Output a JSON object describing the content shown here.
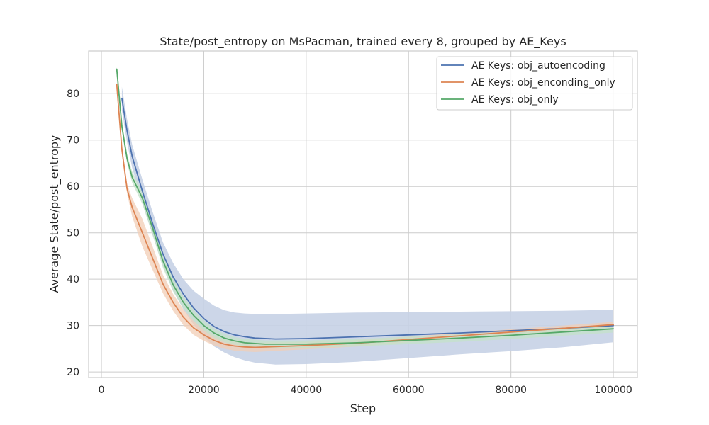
{
  "chart_data": {
    "type": "line",
    "title": "State/post_entropy on MsPacman, trained every 8, grouped by AE_Keys",
    "xlabel": "Step",
    "ylabel": "Average State/post_entropy",
    "xlim": [
      -2500,
      104700
    ],
    "ylim": [
      18.8,
      89.2
    ],
    "xticks": [
      0,
      20000,
      40000,
      60000,
      80000,
      100000
    ],
    "xtick_labels": [
      "0",
      "20000",
      "40000",
      "60000",
      "80000",
      "100000"
    ],
    "yticks": [
      20,
      30,
      40,
      50,
      60,
      70,
      80
    ],
    "ytick_labels": [
      "20",
      "30",
      "40",
      "50",
      "60",
      "70",
      "80"
    ],
    "grid": true,
    "legend_position": "top-right",
    "series": [
      {
        "name": "AE Keys: obj_autoencoding",
        "color": "#4c72b0",
        "band_color": "#c6d1e5",
        "points": [
          [
            4000,
            79.0
          ],
          [
            5000,
            72.0
          ],
          [
            6000,
            66.5
          ],
          [
            8000,
            59.0
          ],
          [
            10000,
            52.0
          ],
          [
            12000,
            45.5
          ],
          [
            14000,
            40.5
          ],
          [
            16000,
            36.8
          ],
          [
            18000,
            33.8
          ],
          [
            20000,
            31.5
          ],
          [
            22000,
            29.8
          ],
          [
            24000,
            28.7
          ],
          [
            26000,
            28.0
          ],
          [
            28000,
            27.6
          ],
          [
            30000,
            27.3
          ],
          [
            34000,
            27.1
          ],
          [
            40000,
            27.2
          ],
          [
            48000,
            27.5
          ],
          [
            60000,
            28.0
          ],
          [
            70000,
            28.4
          ],
          [
            80000,
            28.9
          ],
          [
            90000,
            29.4
          ],
          [
            100000,
            30.0
          ]
        ],
        "band_upper": [
          [
            4000,
            81.5
          ],
          [
            5000,
            74.5
          ],
          [
            6000,
            69.0
          ],
          [
            8000,
            61.5
          ],
          [
            10000,
            54.5
          ],
          [
            12000,
            48.0
          ],
          [
            14000,
            43.5
          ],
          [
            16000,
            40.0
          ],
          [
            18000,
            37.5
          ],
          [
            20000,
            35.8
          ],
          [
            22000,
            34.3
          ],
          [
            24000,
            33.3
          ],
          [
            26000,
            32.8
          ],
          [
            28000,
            32.6
          ],
          [
            30000,
            32.5
          ],
          [
            35000,
            32.5
          ],
          [
            40000,
            32.6
          ],
          [
            50000,
            32.8
          ],
          [
            60000,
            32.9
          ],
          [
            70000,
            33.0
          ],
          [
            80000,
            33.1
          ],
          [
            90000,
            33.2
          ],
          [
            100000,
            33.4
          ]
        ],
        "band_lower": [
          [
            4000,
            76.5
          ],
          [
            5000,
            69.5
          ],
          [
            6000,
            64.0
          ],
          [
            8000,
            56.5
          ],
          [
            10000,
            49.5
          ],
          [
            12000,
            43.0
          ],
          [
            14000,
            37.5
          ],
          [
            16000,
            33.5
          ],
          [
            18000,
            30.2
          ],
          [
            20000,
            27.5
          ],
          [
            22000,
            25.5
          ],
          [
            24000,
            24.2
          ],
          [
            26000,
            23.2
          ],
          [
            28000,
            22.5
          ],
          [
            30000,
            22.0
          ],
          [
            34000,
            21.6
          ],
          [
            40000,
            21.7
          ],
          [
            50000,
            22.2
          ],
          [
            60000,
            23.0
          ],
          [
            70000,
            23.8
          ],
          [
            80000,
            24.5
          ],
          [
            90000,
            25.3
          ],
          [
            100000,
            26.4
          ]
        ]
      },
      {
        "name": "AE Keys: obj_enconding_only",
        "color": "#dd8452",
        "band_color": "#f1cdb6",
        "points": [
          [
            3000,
            82.0
          ],
          [
            4000,
            68.0
          ],
          [
            5000,
            59.5
          ],
          [
            6000,
            55.5
          ],
          [
            8000,
            50.0
          ],
          [
            10000,
            44.5
          ],
          [
            12000,
            39.0
          ],
          [
            14000,
            35.0
          ],
          [
            16000,
            31.8
          ],
          [
            18000,
            29.5
          ],
          [
            20000,
            28.0
          ],
          [
            22000,
            26.8
          ],
          [
            24000,
            26.0
          ],
          [
            26000,
            25.6
          ],
          [
            28000,
            25.4
          ],
          [
            30000,
            25.3
          ],
          [
            35000,
            25.5
          ],
          [
            40000,
            25.7
          ],
          [
            50000,
            26.2
          ],
          [
            60000,
            27.0
          ],
          [
            70000,
            27.8
          ],
          [
            80000,
            28.6
          ],
          [
            90000,
            29.4
          ],
          [
            100000,
            30.2
          ]
        ],
        "band_upper": [
          [
            3000,
            82.5
          ],
          [
            4000,
            69.0
          ],
          [
            5000,
            60.5
          ],
          [
            6000,
            57.5
          ],
          [
            8000,
            53.0
          ],
          [
            10000,
            47.0
          ],
          [
            12000,
            41.0
          ],
          [
            14000,
            36.8
          ],
          [
            16000,
            33.5
          ],
          [
            18000,
            31.0
          ],
          [
            20000,
            29.3
          ],
          [
            22000,
            27.9
          ],
          [
            24000,
            27.0
          ],
          [
            26000,
            26.6
          ],
          [
            28000,
            26.4
          ],
          [
            30000,
            26.3
          ],
          [
            35000,
            26.4
          ],
          [
            40000,
            26.5
          ],
          [
            50000,
            26.9
          ],
          [
            60000,
            27.6
          ],
          [
            70000,
            28.4
          ],
          [
            80000,
            29.2
          ],
          [
            90000,
            30.0
          ],
          [
            100000,
            30.8
          ]
        ],
        "band_lower": [
          [
            3000,
            81.5
          ],
          [
            4000,
            67.0
          ],
          [
            5000,
            58.5
          ],
          [
            6000,
            53.5
          ],
          [
            8000,
            47.0
          ],
          [
            10000,
            42.0
          ],
          [
            12000,
            37.0
          ],
          [
            14000,
            33.2
          ],
          [
            16000,
            30.1
          ],
          [
            18000,
            28.0
          ],
          [
            20000,
            26.7
          ],
          [
            22000,
            25.7
          ],
          [
            24000,
            25.0
          ],
          [
            26000,
            24.6
          ],
          [
            28000,
            24.4
          ],
          [
            30000,
            24.3
          ],
          [
            35000,
            24.6
          ],
          [
            40000,
            24.9
          ],
          [
            50000,
            25.5
          ],
          [
            60000,
            26.4
          ],
          [
            70000,
            27.2
          ],
          [
            80000,
            28.0
          ],
          [
            90000,
            28.8
          ],
          [
            100000,
            29.6
          ]
        ]
      },
      {
        "name": "AE Keys: obj_only",
        "color": "#55a868",
        "band_color": "#c4e2ca",
        "points": [
          [
            3000,
            85.3
          ],
          [
            4000,
            73.0
          ],
          [
            5000,
            66.0
          ],
          [
            6000,
            62.0
          ],
          [
            8000,
            57.5
          ],
          [
            10000,
            51.0
          ],
          [
            12000,
            44.0
          ],
          [
            14000,
            38.8
          ],
          [
            16000,
            35.0
          ],
          [
            18000,
            32.2
          ],
          [
            20000,
            30.0
          ],
          [
            22000,
            28.4
          ],
          [
            24000,
            27.3
          ],
          [
            26000,
            26.7
          ],
          [
            28000,
            26.3
          ],
          [
            32000,
            26.0
          ],
          [
            40000,
            26.0
          ],
          [
            50000,
            26.3
          ],
          [
            60000,
            26.8
          ],
          [
            70000,
            27.3
          ],
          [
            80000,
            27.9
          ],
          [
            90000,
            28.6
          ],
          [
            100000,
            29.3
          ]
        ],
        "band_upper": [
          [
            3000,
            85.8
          ],
          [
            4000,
            74.0
          ],
          [
            5000,
            67.0
          ],
          [
            6000,
            63.2
          ],
          [
            8000,
            58.8
          ],
          [
            10000,
            52.5
          ],
          [
            12000,
            45.5
          ],
          [
            14000,
            40.2
          ],
          [
            16000,
            36.3
          ],
          [
            18000,
            33.4
          ],
          [
            20000,
            31.1
          ],
          [
            22000,
            29.4
          ],
          [
            24000,
            28.2
          ],
          [
            26000,
            27.5
          ],
          [
            28000,
            27.1
          ],
          [
            32000,
            26.8
          ],
          [
            40000,
            26.8
          ],
          [
            50000,
            27.1
          ],
          [
            60000,
            27.6
          ],
          [
            70000,
            28.1
          ],
          [
            80000,
            28.7
          ],
          [
            90000,
            29.4
          ],
          [
            100000,
            30.1
          ]
        ],
        "band_lower": [
          [
            3000,
            84.8
          ],
          [
            4000,
            72.0
          ],
          [
            5000,
            65.0
          ],
          [
            6000,
            60.8
          ],
          [
            8000,
            56.2
          ],
          [
            10000,
            49.5
          ],
          [
            12000,
            42.5
          ],
          [
            14000,
            37.4
          ],
          [
            16000,
            33.7
          ],
          [
            18000,
            31.0
          ],
          [
            20000,
            28.9
          ],
          [
            22000,
            27.4
          ],
          [
            24000,
            26.4
          ],
          [
            26000,
            25.9
          ],
          [
            28000,
            25.5
          ],
          [
            32000,
            25.2
          ],
          [
            40000,
            25.2
          ],
          [
            50000,
            25.5
          ],
          [
            60000,
            26.0
          ],
          [
            70000,
            26.5
          ],
          [
            80000,
            27.1
          ],
          [
            90000,
            27.8
          ],
          [
            100000,
            28.5
          ]
        ]
      }
    ]
  }
}
